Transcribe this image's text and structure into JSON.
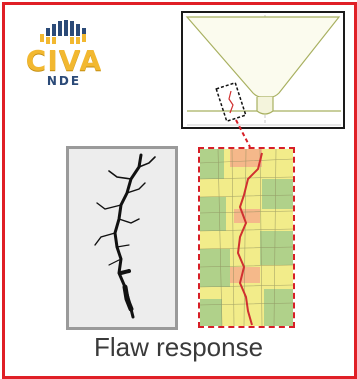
{
  "logo": {
    "word": "CIVA",
    "sub": "NDE",
    "colors": {
      "primary": "#f2b830",
      "secondary": "#2b4a78"
    }
  },
  "caption": "Flaw response",
  "colors": {
    "frame": "#e01f26",
    "inset_border": "#1a1a1a",
    "micro_border": "#9a9a9a",
    "sim_border": "#d71f27",
    "crack": "#d03030",
    "mesh_green": "#a9cf8a",
    "mesh_yellow": "#f2ec8a"
  }
}
